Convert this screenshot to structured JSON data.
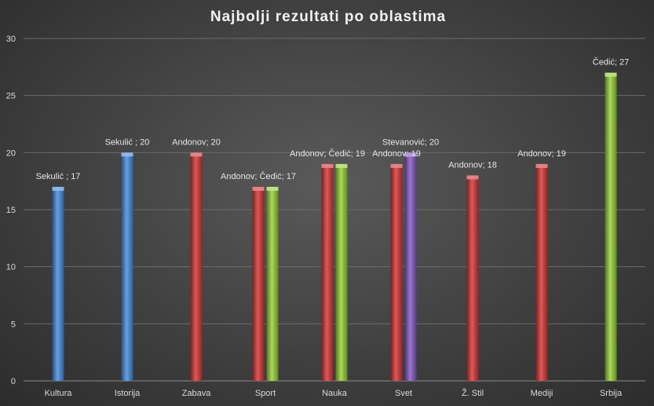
{
  "chart_data": {
    "type": "bar",
    "title": "Najbolji rezultati po oblastima",
    "ylim": [
      0,
      30
    ],
    "yticks": [
      0,
      5,
      10,
      15,
      20,
      25,
      30
    ],
    "grid": true,
    "categories": [
      "Kultura",
      "Istorija",
      "Zabava",
      "Sport",
      "Nauka",
      "Svet",
      "Ž. Stil",
      "Mediji",
      "Srbija"
    ],
    "series": [
      {
        "color": "#4a8fe0",
        "values": [
          17,
          20,
          null,
          null,
          null,
          null,
          null,
          null,
          null
        ],
        "labels": [
          "Sekulić ; 17",
          "Sekulić ; 20",
          null,
          null,
          null,
          null,
          null,
          null,
          null
        ]
      },
      {
        "color": "#d93a3a",
        "values": [
          null,
          null,
          20,
          17,
          19,
          19,
          18,
          19,
          null
        ],
        "labels": [
          null,
          null,
          "Andonov; 20",
          "Andonov; Čedić; 17",
          "Andonov; Čedić; 19",
          "Andonov; 19",
          "Andonov; 18",
          "Andonov; 19",
          null
        ]
      },
      {
        "color": "#9ad43a",
        "values": [
          null,
          null,
          null,
          17,
          19,
          null,
          null,
          null,
          27
        ],
        "labels": [
          null,
          null,
          null,
          null,
          null,
          null,
          null,
          null,
          "Čedić; 27"
        ]
      },
      {
        "color": "#8a5cc8",
        "values": [
          null,
          null,
          null,
          null,
          null,
          20,
          null,
          null,
          null
        ],
        "labels": [
          null,
          null,
          null,
          null,
          null,
          "Stevanović; 20",
          null,
          null,
          null
        ]
      }
    ]
  }
}
